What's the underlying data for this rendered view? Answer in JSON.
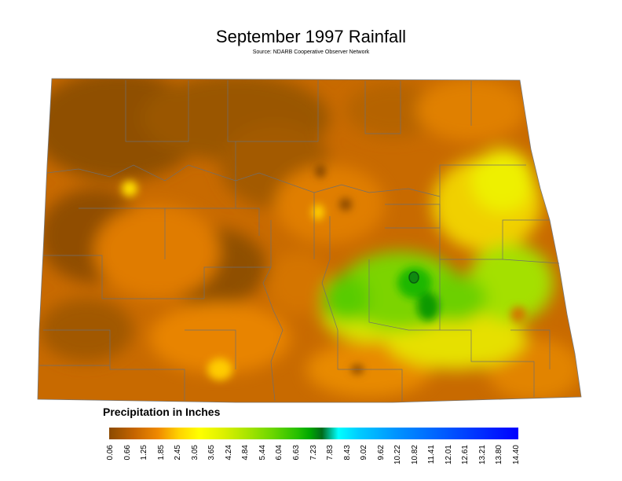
{
  "title": "September 1997 Rainfall",
  "subtitle": "Source: NDARB Cooperative Observer Network",
  "legend": {
    "title": "Precipitation in Inches",
    "ticks": [
      "0.06",
      "0.66",
      "1.25",
      "1.85",
      "2.45",
      "3.05",
      "3.65",
      "4.24",
      "4.84",
      "5.44",
      "6.04",
      "6.63",
      "7.23",
      "7.83",
      "8.43",
      "9.02",
      "9.62",
      "10.22",
      "10.82",
      "11.41",
      "12.01",
      "12.61",
      "13.21",
      "13.80",
      "14.40"
    ],
    "color_stops": [
      "#8b4a00",
      "#f08a00",
      "#ffff00",
      "#6ad600",
      "#006b1a",
      "#00ffff",
      "#0000ff"
    ]
  }
}
